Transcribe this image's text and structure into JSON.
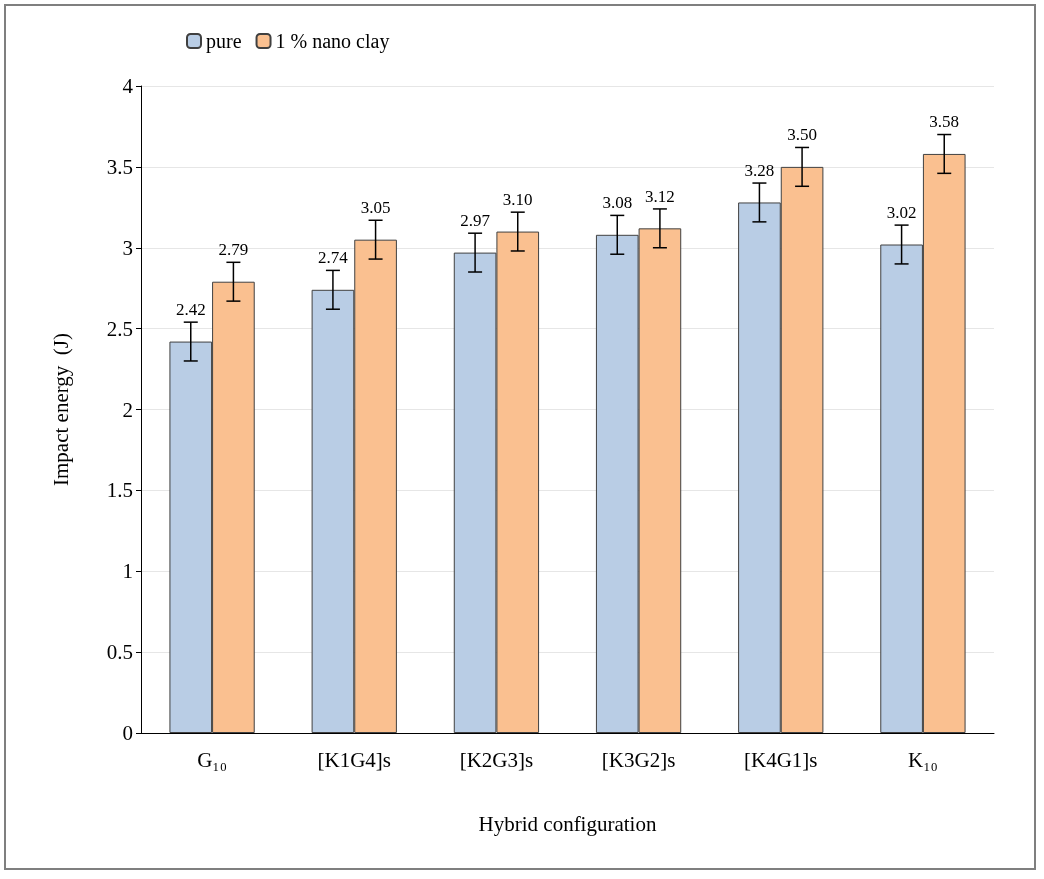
{
  "chart_data": {
    "type": "bar",
    "xlabel": "Hybrid configuration",
    "ylabel": "Impact energy  (J)",
    "categories": [
      "G₁₀",
      "[K1G4]s",
      "[K2G3]s",
      "[K3G2]s",
      "[K4G1]s",
      "K₁₀"
    ],
    "series": [
      {
        "name": "pure",
        "color": "#b9cde5",
        "values": [
          2.42,
          2.74,
          2.97,
          3.08,
          3.28,
          3.02
        ],
        "errors": [
          0.12,
          0.12,
          0.12,
          0.12,
          0.12,
          0.12
        ],
        "value_labels": [
          "2.42",
          "2.74",
          "2.97",
          "3.08",
          "3.28",
          "3.02"
        ]
      },
      {
        "name": "1 % nano clay",
        "color": "#fac090",
        "values": [
          2.79,
          3.05,
          3.1,
          3.12,
          3.5,
          3.58
        ],
        "errors": [
          0.12,
          0.12,
          0.12,
          0.12,
          0.12,
          0.12
        ],
        "value_labels": [
          "2.79",
          "3.05",
          "3.10",
          "3.12",
          "3.50",
          "3.58"
        ]
      }
    ],
    "ylim": [
      0,
      4
    ],
    "yticks": [
      0,
      0.5,
      1,
      1.5,
      2,
      2.5,
      3,
      3.5,
      4
    ],
    "grid": "y",
    "legend": "top left"
  }
}
